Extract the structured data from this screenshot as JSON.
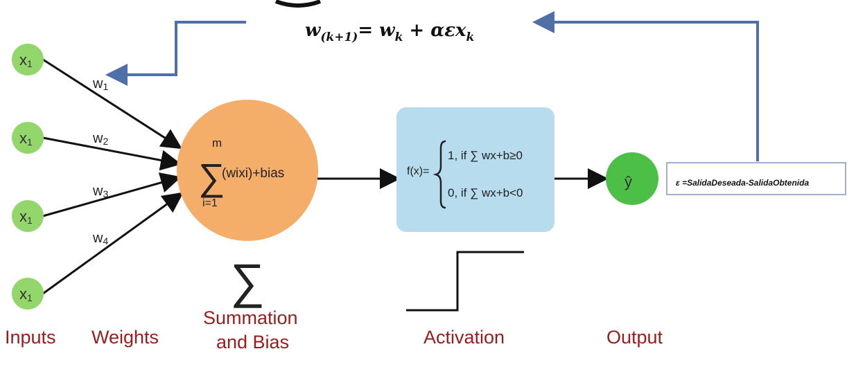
{
  "update_rule": {
    "w": "w",
    "subscript_k1": "(k+1)",
    "rhs": "= w",
    "sub_k": "k",
    "plus": " + αεx",
    "sub_k2": "k"
  },
  "inputs": [
    {
      "label": "x",
      "sub": "1"
    },
    {
      "label": "x",
      "sub": "1"
    },
    {
      "label": "x",
      "sub": "1"
    },
    {
      "label": "x",
      "sub": "1"
    }
  ],
  "weights": [
    {
      "label": "w",
      "sub": "1"
    },
    {
      "label": "w",
      "sub": "2"
    },
    {
      "label": "w",
      "sub": "3"
    },
    {
      "label": "w",
      "sub": "4"
    }
  ],
  "summation": {
    "upper": "m",
    "sigma": "∑",
    "lower": "i=1",
    "expr": "(wixi)+bias",
    "large_sigma": "∑"
  },
  "activation": {
    "fx": "f(x)=",
    "case1": "1, if ∑ wx+b≥0",
    "case2": "0, if ∑ wx+b<0"
  },
  "output": {
    "label": "ŷ"
  },
  "error_box": {
    "text": "ε =SalidaDeseada-SalidaObtenida"
  },
  "stage_labels": {
    "inputs": "Inputs",
    "weights": "Weights",
    "summation_line1": "Summation",
    "summation_line2": "and Bias",
    "activation": "Activation",
    "output": "Output"
  },
  "colors": {
    "input_node": "#93d66b",
    "sum_node": "#f5ad6a",
    "activation_box": "#b6dced",
    "output_node": "#4bbf46",
    "feedback_line": "#4f6fa8",
    "stage_label": "#9b1c1c"
  }
}
